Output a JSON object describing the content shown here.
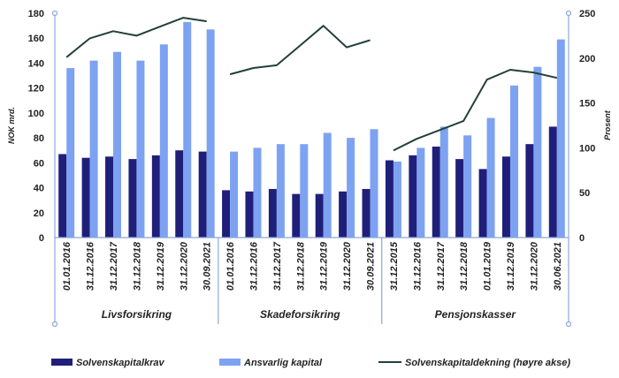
{
  "chart_data": {
    "type": "bar",
    "title": "",
    "ylabel_left": "NOK mrd.",
    "ylabel_right": "Prosent",
    "ylim_left": [
      0,
      180
    ],
    "ylim_right": [
      0,
      250
    ],
    "yticks_left": [
      0,
      20,
      40,
      60,
      80,
      100,
      120,
      140,
      160,
      180
    ],
    "yticks_right": [
      0,
      50,
      100,
      150,
      200,
      250
    ],
    "colors": {
      "solvenskapitalkrav": "#1f1f7a",
      "ansvarlig_kapital": "#7ea2f2",
      "solvenskapitaldekning": "#23403a",
      "separator": "#8ea6d8"
    },
    "legend": {
      "position": "bottom",
      "items": [
        "Solvenskapitalkrav",
        "Ansvarlig kapital",
        "Solvenskapitaldekning (høyre akse)"
      ]
    },
    "groups": [
      {
        "name": "Livsforsikring",
        "categories": [
          "01.01.2016",
          "31.12.2016",
          "31.12.2017",
          "31.12.2018",
          "31.12.2019",
          "31.12.2020",
          "30.09.2021"
        ],
        "solvenskapitalkrav": [
          67,
          64,
          65,
          63,
          66,
          70,
          69
        ],
        "ansvarlig_kapital": [
          136,
          142,
          149,
          142,
          155,
          173,
          167
        ],
        "solvenskapitaldekning": [
          201,
          222,
          230,
          225,
          235,
          245,
          241
        ]
      },
      {
        "name": "Skadeforsikring",
        "categories": [
          "01.01.2016",
          "31.12.2016",
          "31.12.2017",
          "31.12.2018",
          "31.12.2019",
          "31.12.2020",
          "30.09.2021"
        ],
        "solvenskapitalkrav": [
          38,
          37,
          39,
          35,
          35,
          37,
          39
        ],
        "ansvarlig_kapital": [
          69,
          72,
          75,
          75,
          84,
          80,
          87
        ],
        "solvenskapitaldekning": [
          182,
          189,
          192,
          214,
          236,
          212,
          220
        ]
      },
      {
        "name": "Pensjonskasser",
        "categories": [
          "31.12.2015",
          "31.12.2016",
          "31.12.2017",
          "31.12.2018",
          "01.01.2019",
          "31.12.2019",
          "31.12.2020",
          "30.06.2021"
        ],
        "solvenskapitalkrav": [
          62,
          66,
          73,
          63,
          55,
          65,
          75,
          89
        ],
        "ansvarlig_kapital": [
          61,
          72,
          89,
          82,
          96,
          122,
          137,
          159
        ],
        "solvenskapitaldekning": [
          97,
          110,
          120,
          130,
          176,
          187,
          184,
          178
        ]
      }
    ]
  }
}
